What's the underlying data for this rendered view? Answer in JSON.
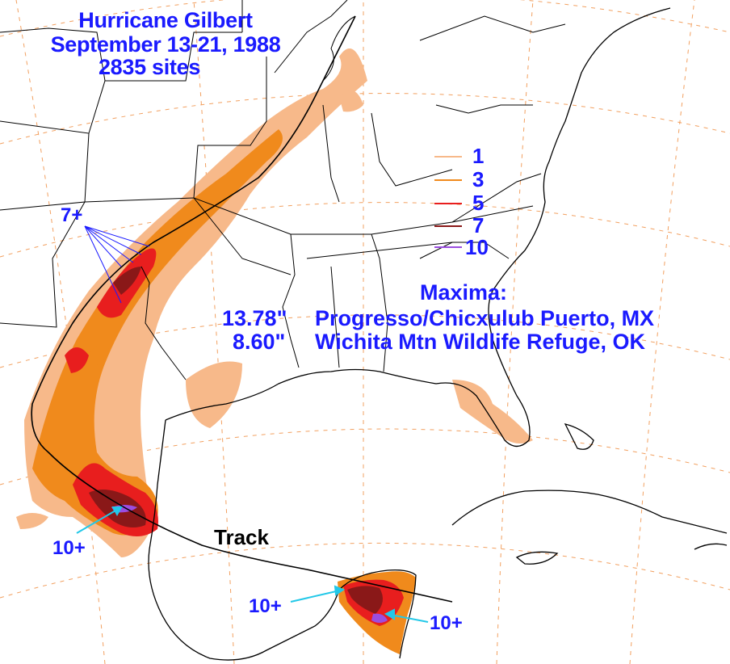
{
  "title": {
    "line1": "Hurricane Gilbert",
    "line2": "September 13-21, 1988",
    "line3": "2835 sites"
  },
  "legend": {
    "items": [
      {
        "value": "1",
        "color": "#f7b98a"
      },
      {
        "value": "3",
        "color": "#f08a1c"
      },
      {
        "value": "5",
        "color": "#e81e1e"
      },
      {
        "value": "7",
        "color": "#8a1818"
      },
      {
        "value": "10",
        "color": "#9b4de0"
      }
    ]
  },
  "maxima": {
    "heading": "Maxima:",
    "rows": [
      {
        "amount": "13.78\"",
        "location": "Progresso/Chicxulub Puerto, MX"
      },
      {
        "amount": "8.60\"",
        "location": "Wichita Mtn Wildlife Refuge, OK"
      }
    ]
  },
  "annotations": {
    "seven_plus": "7+",
    "ten_plus_mexico": "10+",
    "ten_plus_yucatan_west": "10+",
    "ten_plus_yucatan_east": "10+",
    "track": "Track"
  },
  "colors": {
    "light": "#f7b98a",
    "orange": "#f08a1c",
    "red": "#e81e1e",
    "darkred": "#8a1818",
    "purple": "#9b4de0",
    "label_blue": "#1a1aff",
    "arrow_cyan": "#22c8e8"
  }
}
